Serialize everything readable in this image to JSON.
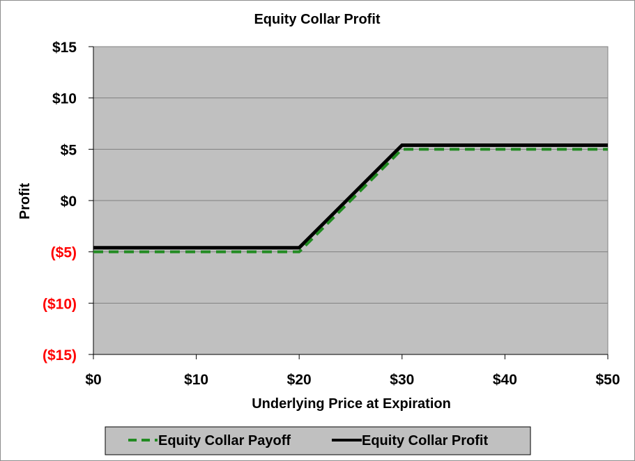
{
  "chart_data": {
    "type": "line",
    "title": "Equity Collar Profit",
    "xlabel": "Underlying Price at Expiration",
    "ylabel": "Profit",
    "xlim": [
      0,
      50
    ],
    "ylim": [
      -15,
      15
    ],
    "x_ticks": [
      0,
      10,
      20,
      30,
      40,
      50
    ],
    "x_tick_labels": [
      "$0",
      "$10",
      "$20",
      "$30",
      "$40",
      "$50"
    ],
    "y_ticks": [
      15,
      10,
      5,
      0,
      -5,
      -10,
      -15
    ],
    "y_tick_labels": [
      "$15",
      "$10",
      "$5",
      "$0",
      "($5)",
      "($10)",
      "($15)"
    ],
    "negative_tick_color": "#ff0000",
    "positive_tick_color": "#000000",
    "plot_background": "#c0c0c0",
    "grid": "horizontal",
    "legend_position": "bottom",
    "series": [
      {
        "name": "Equity Collar Payoff",
        "color": "#228b22",
        "style": "dashed",
        "x": [
          0,
          20,
          30,
          50
        ],
        "y": [
          -5,
          -5,
          5,
          5
        ]
      },
      {
        "name": "Equity Collar Profit",
        "color": "#000000",
        "style": "solid",
        "x": [
          0,
          20,
          30,
          50
        ],
        "y": [
          -4.6,
          -4.6,
          5.4,
          5.4
        ]
      }
    ]
  }
}
